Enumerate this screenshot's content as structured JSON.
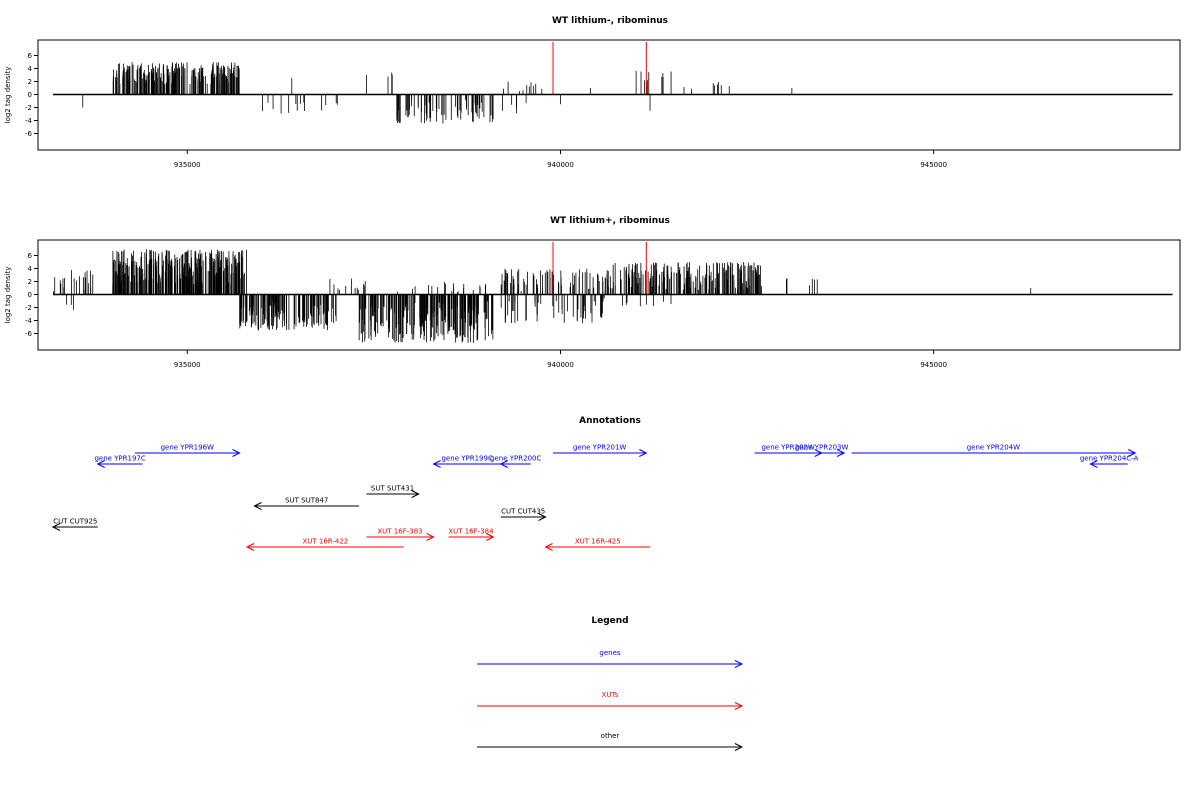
{
  "chart_data": [
    {
      "type": "bar",
      "title": "WT lithium-, ribominus",
      "ylabel": "log2 tag density",
      "xlabel": "",
      "xlim": [
        933000,
        948300
      ],
      "ylim": [
        -8,
        8
      ],
      "x_ticks": [
        "935000",
        "940000",
        "945000"
      ],
      "y_ticks": [
        "6",
        "4",
        "2",
        "0",
        "-2",
        "-4",
        "-6"
      ],
      "baseline_span": [
        933200,
        948200
      ],
      "highlight_x": [
        939900,
        941150
      ],
      "highlight_color": "#ff0000",
      "bar_color": "#000000",
      "bins": [
        {
          "range": [
            933600,
            933600
          ],
          "n": 1,
          "sign": -1,
          "min": 2,
          "max": 2
        },
        {
          "range": [
            934000,
            935700
          ],
          "n": 220,
          "sign": 1,
          "min": 1.5,
          "max": 5.0
        },
        {
          "range": [
            936000,
            937200
          ],
          "n": 14,
          "sign": -1,
          "min": 0.8,
          "max": 3.0
        },
        {
          "range": [
            936400,
            936400
          ],
          "n": 1,
          "sign": 1,
          "min": 2.5,
          "max": 2.5
        },
        {
          "range": [
            937400,
            937400
          ],
          "n": 1,
          "sign": 1,
          "min": 3.0,
          "max": 3.0
        },
        {
          "range": [
            937800,
            939100
          ],
          "n": 70,
          "sign": -1,
          "min": 0.8,
          "max": 4.5
        },
        {
          "range": [
            937650,
            937750
          ],
          "n": 3,
          "sign": 1,
          "min": 2.0,
          "max": 3.5
        },
        {
          "range": [
            939200,
            939800
          ],
          "n": 10,
          "sign": 1,
          "min": 0.3,
          "max": 2.0
        },
        {
          "range": [
            939200,
            939600
          ],
          "n": 5,
          "sign": -1,
          "min": 1.0,
          "max": 3.0
        },
        {
          "range": [
            940000,
            940000
          ],
          "n": 1,
          "sign": -1,
          "min": 1.5,
          "max": 1.5
        },
        {
          "range": [
            940400,
            940400
          ],
          "n": 1,
          "sign": 1,
          "min": 1.0,
          "max": 1.0
        },
        {
          "range": [
            940950,
            941500
          ],
          "n": 10,
          "sign": 1,
          "min": 1.0,
          "max": 3.8
        },
        {
          "range": [
            941200,
            941200
          ],
          "n": 1,
          "sign": -1,
          "min": 2.5,
          "max": 2.5
        },
        {
          "range": [
            941600,
            942300
          ],
          "n": 8,
          "sign": 1,
          "min": 0.8,
          "max": 2.5
        },
        {
          "range": [
            943100,
            943100
          ],
          "n": 1,
          "sign": 1,
          "min": 1.0,
          "max": 1.0
        }
      ]
    },
    {
      "type": "bar",
      "title": "WT lithium+, ribominus",
      "ylabel": "log2 tag density",
      "xlabel": "",
      "xlim": [
        933000,
        948300
      ],
      "ylim": [
        -8,
        8
      ],
      "x_ticks": [
        "935000",
        "940000",
        "945000"
      ],
      "y_ticks": [
        "6",
        "4",
        "2",
        "0",
        "-2",
        "-4",
        "-6"
      ],
      "baseline_span": [
        933200,
        948200
      ],
      "highlight_x": [
        939900,
        941150
      ],
      "highlight_color": "#ff0000",
      "bar_color": "#000000",
      "bins": [
        {
          "range": [
            933200,
            933800
          ],
          "n": 20,
          "sign": 1,
          "min": 0.5,
          "max": 4.0
        },
        {
          "range": [
            933300,
            933600
          ],
          "n": 3,
          "sign": -1,
          "min": 1.0,
          "max": 2.5
        },
        {
          "range": [
            934000,
            935800
          ],
          "n": 300,
          "sign": 1,
          "min": 1.5,
          "max": 7.0
        },
        {
          "range": [
            935700,
            937000
          ],
          "n": 140,
          "sign": -1,
          "min": 1.0,
          "max": 5.5
        },
        {
          "range": [
            936900,
            937400
          ],
          "n": 12,
          "sign": 1,
          "min": 0.5,
          "max": 2.5
        },
        {
          "range": [
            937300,
            939100
          ],
          "n": 220,
          "sign": -1,
          "min": 1.0,
          "max": 7.5
        },
        {
          "range": [
            937800,
            939000
          ],
          "n": 20,
          "sign": 1,
          "min": 0.3,
          "max": 2.0
        },
        {
          "range": [
            939200,
            940700
          ],
          "n": 80,
          "sign": 1,
          "min": 0.5,
          "max": 4.0
        },
        {
          "range": [
            939200,
            940600
          ],
          "n": 50,
          "sign": -1,
          "min": 0.5,
          "max": 4.5
        },
        {
          "range": [
            940700,
            942700
          ],
          "n": 200,
          "sign": 1,
          "min": 0.5,
          "max": 5.0
        },
        {
          "range": [
            940800,
            941500
          ],
          "n": 8,
          "sign": -1,
          "min": 0.5,
          "max": 2.0
        },
        {
          "range": [
            942900,
            943100
          ],
          "n": 3,
          "sign": 1,
          "min": 1.0,
          "max": 3.0
        },
        {
          "range": [
            943300,
            943450
          ],
          "n": 4,
          "sign": 1,
          "min": 1.0,
          "max": 3.0
        },
        {
          "range": [
            946300,
            946300
          ],
          "n": 1,
          "sign": 1,
          "min": 1.0,
          "max": 1.0
        }
      ]
    }
  ],
  "annotations": {
    "title": "Annotations",
    "xlim": [
      933000,
      948300
    ],
    "items": [
      {
        "label": "gene YPR196W",
        "color": "#0000ff",
        "x1": 934300,
        "x2": 935700,
        "dir": "right",
        "row": 0
      },
      {
        "label": "gene YPR197C",
        "color": "#0000ff",
        "x1": 933800,
        "x2": 934400,
        "dir": "left",
        "row": 1
      },
      {
        "label": "gene YPR199C",
        "color": "#0000ff",
        "x1": 938300,
        "x2": 939200,
        "dir": "left",
        "row": 1
      },
      {
        "label": "gene YPR200C",
        "color": "#0000ff",
        "x1": 939200,
        "x2": 939600,
        "dir": "left",
        "row": 1
      },
      {
        "label": "gene YPR201W",
        "color": "#0000ff",
        "x1": 939900,
        "x2": 941150,
        "dir": "right",
        "row": 0
      },
      {
        "label": "gene YPR202W",
        "color": "#0000ff",
        "x1": 942600,
        "x2": 943500,
        "dir": "right",
        "row": 0
      },
      {
        "label": "gene YPR203W",
        "color": "#0000ff",
        "x1": 943200,
        "x2": 943800,
        "dir": "right",
        "row": 0
      },
      {
        "label": "gene YPR204W",
        "color": "#0000ff",
        "x1": 943900,
        "x2": 947700,
        "dir": "right",
        "row": 0
      },
      {
        "label": "gene YPR204C-A",
        "color": "#0000ff",
        "x1": 947100,
        "x2": 947600,
        "dir": "left",
        "row": 1
      },
      {
        "label": "SUT SUT431",
        "color": "#000000",
        "x1": 937400,
        "x2": 938100,
        "dir": "right",
        "row": 2
      },
      {
        "label": "SUT SUT847",
        "color": "#000000",
        "x1": 935900,
        "x2": 937300,
        "dir": "left",
        "row": 3
      },
      {
        "label": "CUT CUT435",
        "color": "#000000",
        "x1": 939200,
        "x2": 939800,
        "dir": "right",
        "row": 4
      },
      {
        "label": "CUT CUT925",
        "color": "#000000",
        "x1": 933200,
        "x2": 933800,
        "dir": "left",
        "row": 5
      },
      {
        "label": "XUT 16F-383",
        "color": "#ff0000",
        "x1": 937400,
        "x2": 938300,
        "dir": "right",
        "row": 6
      },
      {
        "label": "XUT 16F-384",
        "color": "#ff0000",
        "x1": 938500,
        "x2": 939100,
        "dir": "right",
        "row": 6
      },
      {
        "label": "XUT 16R-422",
        "color": "#ff0000",
        "x1": 935800,
        "x2": 937900,
        "dir": "left",
        "row": 7
      },
      {
        "label": "XUT 16R-425",
        "color": "#ff0000",
        "x1": 939800,
        "x2": 941200,
        "dir": "left",
        "row": 7
      }
    ]
  },
  "legend": {
    "title": "Legend",
    "items": [
      {
        "label": "genes",
        "color": "#0000ff"
      },
      {
        "label": "XUTs",
        "color": "#ff0000"
      },
      {
        "label": "other",
        "color": "#000000"
      }
    ]
  }
}
